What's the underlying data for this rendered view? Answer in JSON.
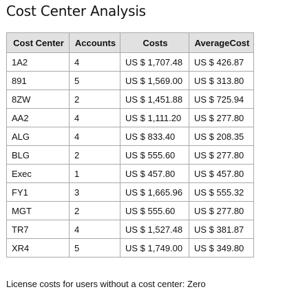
{
  "page": {
    "title": "Cost Center Analysis"
  },
  "table": {
    "headers": [
      "Cost Center",
      "Accounts",
      "Costs",
      "AverageCost"
    ],
    "rows": [
      [
        "1A2",
        "4",
        "US $ 1,707.48",
        "US $ 426.87"
      ],
      [
        "891",
        "5",
        "US $ 1,569.00",
        "US $ 313.80"
      ],
      [
        "8ZW",
        "2",
        "US $ 1,451.88",
        "US $ 725.94"
      ],
      [
        "AA2",
        "4",
        "US $ 1,111.20",
        "US $ 277.80"
      ],
      [
        "ALG",
        "4",
        "US $ 833.40",
        "US $ 208.35"
      ],
      [
        "BLG",
        "2",
        "US $ 555.60",
        "US $ 277.80"
      ],
      [
        "Exec",
        "1",
        "US $ 457.80",
        "US $ 457.80"
      ],
      [
        "FY1",
        "3",
        "US $ 1,665.96",
        "US $ 555.32"
      ],
      [
        "MGT",
        "2",
        "US $ 555.60",
        "US $ 277.80"
      ],
      [
        "TR7",
        "4",
        "US $ 1,527.48",
        "US $ 381.87"
      ],
      [
        "XR4",
        "5",
        "US $ 1,749.00",
        "US $ 349.80"
      ]
    ]
  },
  "footer": {
    "note": "License costs for users without a cost center: Zero"
  },
  "colors": {
    "header_background": "#e1e1e1",
    "border": "#a9a9a9",
    "text": "#111111"
  }
}
